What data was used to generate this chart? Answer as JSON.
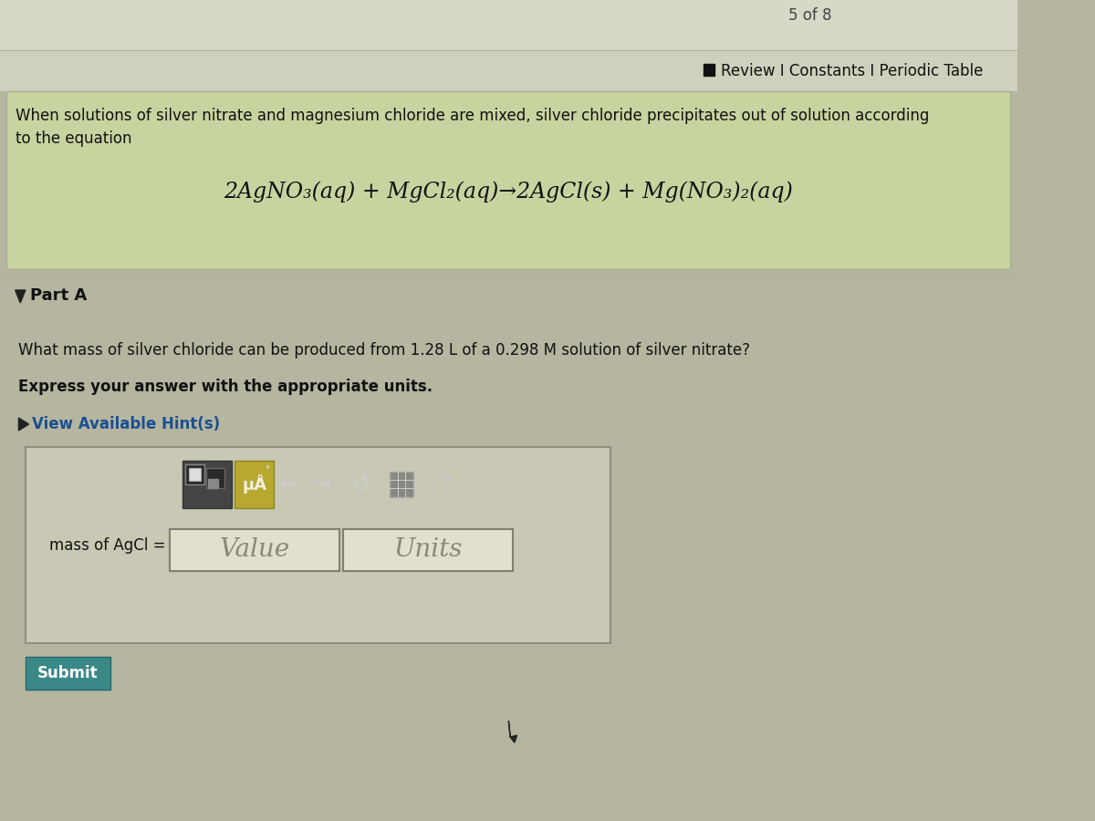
{
  "bg_main": "#b5b5a0",
  "bg_top": "#d0d0c0",
  "bg_top2": "#c8c8b8",
  "green_box_color": "#c8d4a0",
  "green_box_border": "#aab090",
  "input_area_bg": "#c8c8b4",
  "input_area_border": "#909080",
  "toolbar_bg": "#484848",
  "icon1_bg": "#585858",
  "icon2_bg": "#c8b840",
  "value_box_bg": "#e0e0cc",
  "value_box_border": "#808070",
  "submit_bg": "#3a8888",
  "submit_border": "#2a6868",
  "hint_color": "#1a5090",
  "text_dark": "#111111",
  "text_gray": "#555555",
  "header_text": "Review I Constants I Periodic Table",
  "page_indicator": "5 of 8",
  "green_line1": "When solutions of silver nitrate and magnesium chloride are mixed, silver chloride precipitates out of solution according",
  "green_line2": "to the equation",
  "equation": "2AgNO₃(aq) + MgCl₂(aq)→2AgCl(s) + Mg(NO₃)₂(aq)",
  "part_a": "Part A",
  "question": "What mass of silver chloride can be produced from 1.28 L of a 0.298 M solution of silver nitrate?",
  "bold_line": "Express your answer with the appropriate units.",
  "hint_text": "View Available Hint(s)",
  "mass_label": "mass of AgCl =",
  "value_text": "Value",
  "units_text": "Units",
  "submit_text": "Submit"
}
